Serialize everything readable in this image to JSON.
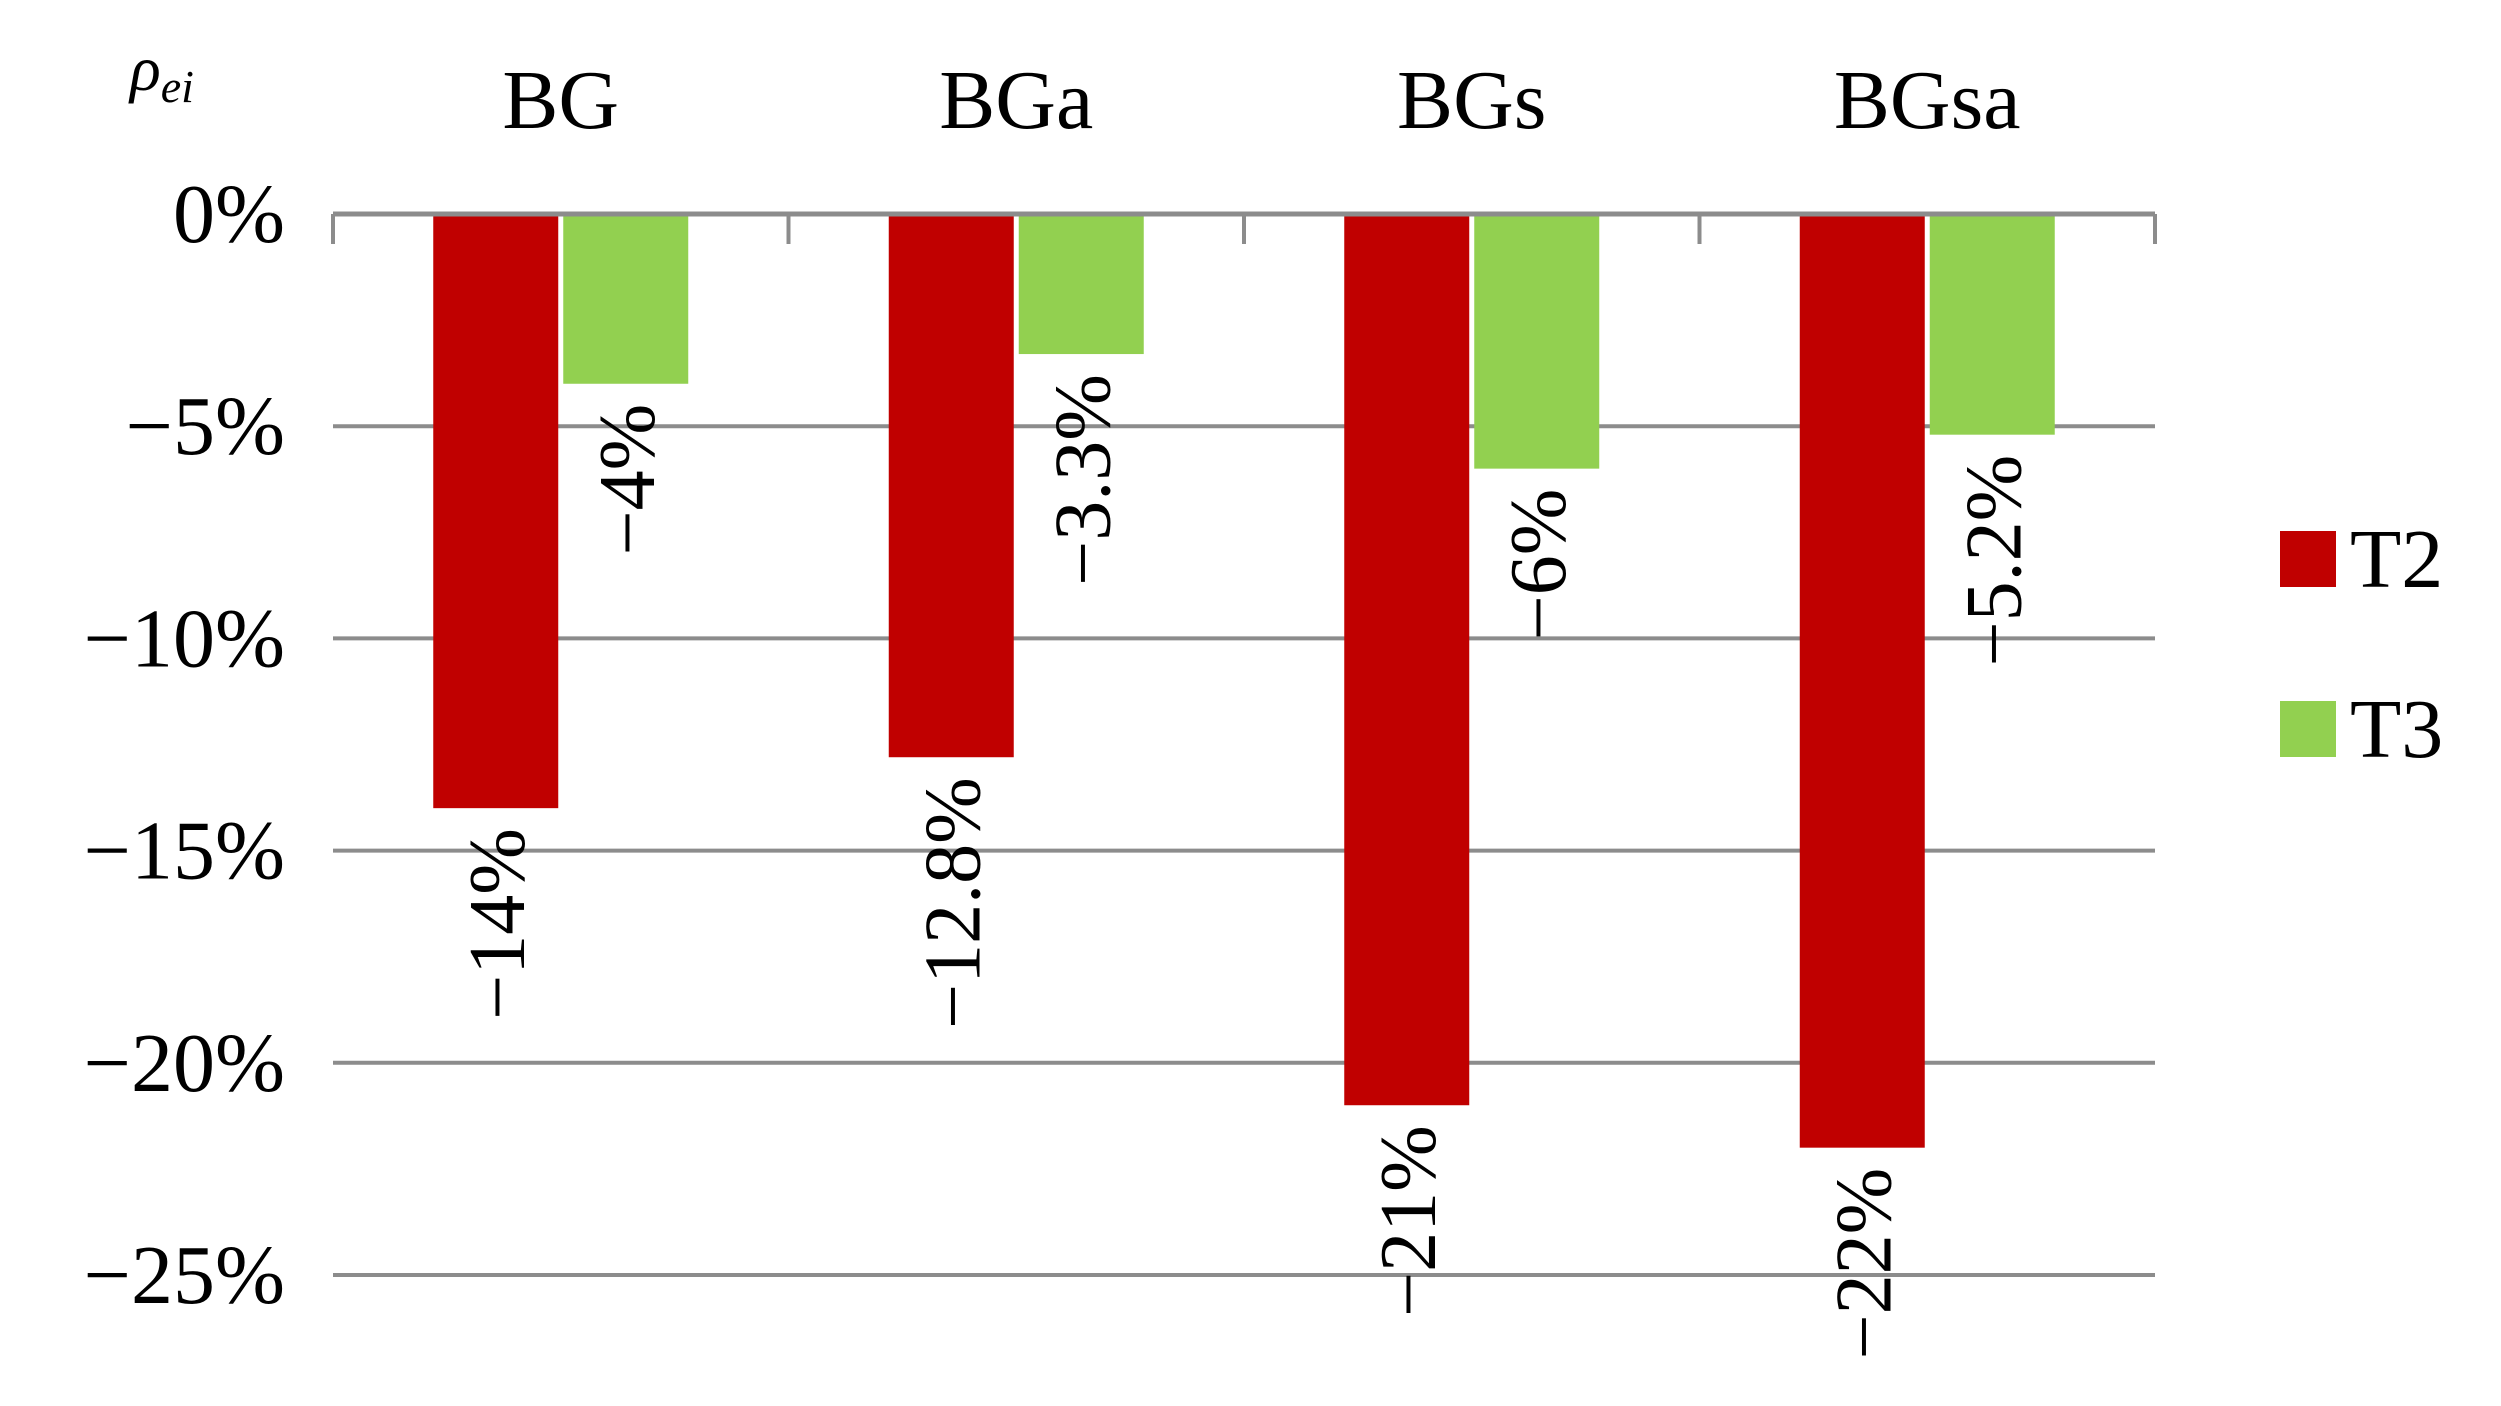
{
  "chart_data": {
    "type": "bar",
    "ylabel_symbol": "ρ",
    "ylabel_subscript": "ei",
    "categories": [
      "BG",
      "BGa",
      "BGs",
      "BGsa"
    ],
    "series": [
      {
        "name": "T2",
        "color": "#c00000",
        "values": [
          -14,
          -12.8,
          -21,
          -22
        ],
        "labels": [
          "−14%",
          "−12.8%",
          "−21%",
          "−22%"
        ]
      },
      {
        "name": "T3",
        "color": "#92d050",
        "values": [
          -4,
          -3.3,
          -6,
          -5.2
        ],
        "labels": [
          "−4%",
          "−3.3%",
          "−6%",
          "−5.2%"
        ]
      }
    ],
    "ylim": [
      -25,
      0
    ],
    "yticks": [
      0,
      -5,
      -10,
      -15,
      -20,
      -25
    ],
    "ytick_labels": [
      "0%",
      "−5%",
      "−10%",
      "−15%",
      "−20%",
      "−25%"
    ],
    "grid": true,
    "legend_position": "right",
    "category_axis_position": "top"
  }
}
